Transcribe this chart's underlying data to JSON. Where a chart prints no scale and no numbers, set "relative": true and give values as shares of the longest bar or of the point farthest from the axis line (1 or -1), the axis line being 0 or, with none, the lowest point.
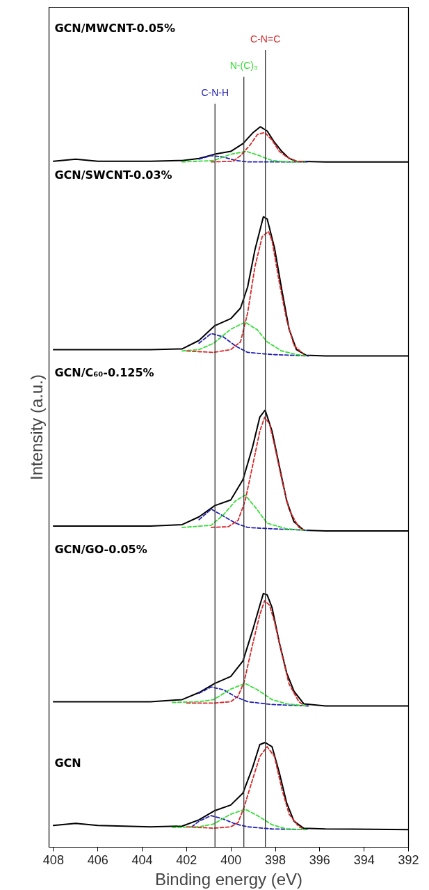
{
  "chart_data": {
    "type": "line",
    "relative": true,
    "xlabel": "Binding energy (eV)",
    "ylabel": "Intensity (a.u.)",
    "xlim": [
      408.2,
      392
    ],
    "xticks": [
      408,
      406,
      404,
      402,
      400,
      398,
      396,
      394,
      392
    ],
    "line_style": "solid",
    "annotations": [
      "GCN/MWCNT-0.05%",
      "GCN/SWCNT-0.03%",
      "GCN/C₆₀-0.125%",
      "GCN/GO-0.05%",
      "GCN"
    ],
    "ref_lines": [
      {
        "axis": "x",
        "value": 400.72,
        "label": "C-N-H",
        "color": "#333333"
      },
      {
        "axis": "x",
        "value": 399.42,
        "label": "N-(C)₃",
        "color": "#333333"
      },
      {
        "axis": "x",
        "value": 398.45,
        "label": "C-N=C",
        "color": "#333333"
      }
    ],
    "series": [
      {
        "color": "#000000",
        "x": [
          408,
          407,
          406,
          403.63,
          402.2,
          401.44,
          400.73,
          400.01,
          399.46,
          399.03,
          398.7,
          398.46,
          398.15,
          397.82,
          397.49,
          397.16,
          396.72,
          395.74,
          392
        ],
        "values": [
          0.006,
          0.009,
          0.006,
          0.004,
          0.005,
          0.014,
          0.027,
          0.035,
          0.052,
          0.088,
          0.121,
          0.124,
          0.118,
          0.081,
          0.038,
          0.012,
          0.002,
          0.001,
          0.0
        ]
      },
      {
        "color": "#1f1fb4",
        "line_style": "dashed",
        "x": [
          401.77,
          401.44,
          400.89,
          400.34,
          399.79,
          399.25,
          398.15,
          396.52
        ],
        "values": [
          0.004,
          0.012,
          0.02,
          0.015,
          0.008,
          0.004,
          0.001,
          0.0
        ]
      },
      {
        "color": "#33dd33",
        "line_style": "dashed",
        "x": [
          402.64,
          401.44,
          400.78,
          400.01,
          399.36,
          398.81,
          398.15,
          397.49,
          396.62
        ],
        "values": [
          0.003,
          0.004,
          0.008,
          0.022,
          0.029,
          0.02,
          0.007,
          0.001,
          0.0
        ]
      },
      {
        "color": "#d62728",
        "line_style": "dashed",
        "x": [
          401.99,
          400.78,
          400.01,
          399.68,
          399.41,
          399.03,
          398.7,
          398.37,
          398.04,
          397.71,
          397.38,
          396.94,
          396.72
        ],
        "values": [
          0.004,
          0.002,
          0.004,
          0.01,
          0.032,
          0.071,
          0.104,
          0.118,
          0.104,
          0.058,
          0.022,
          0.004,
          0.001
        ]
      },
      {
        "color": "#000000",
        "x": [
          408,
          403.63,
          402.2,
          401.44,
          400.73,
          400.01,
          399.46,
          399.03,
          398.7,
          398.54,
          398.37,
          398.15,
          397.82,
          397.49,
          397.16,
          396.72,
          395.74,
          392
        ],
        "values": [
          0.182,
          0.182,
          0.185,
          0.195,
          0.208,
          0.218,
          0.24,
          0.283,
          0.319,
          0.336,
          0.334,
          0.316,
          0.266,
          0.223,
          0.197,
          0.179,
          0.176,
          0.176
        ]
      },
      {
        "color": "#1f1fb4",
        "line_style": "dashed",
        "x": [
          401.44,
          400.89,
          400.34,
          399.79,
          399.25,
          398.15,
          396.52
        ],
        "values": [
          0.194,
          0.203,
          0.199,
          0.189,
          0.182,
          0.178,
          0.176
        ]
      },
      {
        "color": "#33dd33",
        "line_style": "dashed",
        "x": [
          402.64,
          401.44,
          400.78,
          400.01,
          399.36,
          398.81,
          398.15,
          397.49,
          396.62
        ],
        "values": [
          0.181,
          0.182,
          0.185,
          0.2,
          0.208,
          0.199,
          0.185,
          0.179,
          0.176
        ]
      },
      {
        "color": "#d62728",
        "line_style": "dashed",
        "x": [
          401.99,
          400.78,
          400.01,
          399.68,
          399.41,
          399.03,
          398.7,
          398.48,
          398.26,
          398.04,
          397.71,
          397.38,
          396.94,
          396.72
        ],
        "values": [
          0.18,
          0.18,
          0.182,
          0.19,
          0.21,
          0.263,
          0.306,
          0.326,
          0.319,
          0.296,
          0.25,
          0.207,
          0.182,
          0.177
        ]
      },
      {
        "color": "#000000",
        "x": [
          408,
          403.63,
          402.2,
          401.44,
          400.73,
          400.01,
          399.46,
          399.03,
          398.7,
          398.46,
          398.15,
          397.82,
          397.49,
          397.16,
          396.72,
          395.74,
          392
        ],
        "values": [
          0.432,
          0.432,
          0.434,
          0.445,
          0.461,
          0.469,
          0.498,
          0.544,
          0.587,
          0.597,
          0.567,
          0.517,
          0.468,
          0.438,
          0.426,
          0.425,
          0.425
        ]
      },
      {
        "color": "#1f1fb4",
        "line_style": "dashed",
        "x": [
          401.44,
          400.89,
          400.34,
          399.79,
          399.25,
          398.15,
          396.52
        ],
        "values": [
          0.441,
          0.456,
          0.446,
          0.436,
          0.43,
          0.428,
          0.426
        ]
      },
      {
        "color": "#33dd33",
        "line_style": "dashed",
        "x": [
          402.2,
          400.89,
          400.34,
          399.79,
          399.36,
          398.81,
          398.37,
          397.49,
          396.62
        ],
        "values": [
          0.43,
          0.433,
          0.448,
          0.468,
          0.476,
          0.455,
          0.436,
          0.428,
          0.426
        ]
      },
      {
        "color": "#d62728",
        "line_style": "dashed",
        "x": [
          400.89,
          400.12,
          399.68,
          399.36,
          399.03,
          398.7,
          398.48,
          398.26,
          398.04,
          397.71,
          397.38,
          396.94,
          396.72
        ],
        "values": [
          0.43,
          0.431,
          0.44,
          0.468,
          0.517,
          0.567,
          0.587,
          0.577,
          0.547,
          0.498,
          0.455,
          0.43,
          0.427
        ]
      },
      {
        "color": "#000000",
        "x": [
          408,
          403.63,
          402.2,
          401.44,
          400.73,
          400.01,
          399.57,
          399.25,
          398.92,
          398.54,
          398.37,
          398.04,
          397.71,
          397.38,
          397.05,
          396.62,
          395.74,
          392
        ],
        "values": [
          0.683,
          0.683,
          0.684,
          0.696,
          0.717,
          0.727,
          0.742,
          0.772,
          0.825,
          0.872,
          0.869,
          0.828,
          0.768,
          0.712,
          0.683,
          0.675,
          0.674,
          0.674
        ]
      },
      {
        "color": "#1f1fb4",
        "line_style": "dashed",
        "x": [
          401.44,
          400.89,
          400.34,
          399.79,
          399.25,
          398.15,
          396.52
        ],
        "values": [
          0.692,
          0.706,
          0.701,
          0.688,
          0.679,
          0.676,
          0.674
        ]
      },
      {
        "color": "#33dd33",
        "line_style": "dashed",
        "x": [
          402.2,
          401.44,
          400.78,
          400.01,
          399.36,
          398.81,
          398.37,
          397.71,
          397.05,
          396.62
        ],
        "values": [
          0.681,
          0.683,
          0.692,
          0.712,
          0.722,
          0.711,
          0.694,
          0.681,
          0.676,
          0.674
        ]
      },
      {
        "color": "#d62728",
        "line_style": "dashed",
        "x": [
          401.99,
          400.78,
          400.01,
          399.57,
          399.25,
          398.92,
          398.59,
          398.31,
          398.15,
          397.82,
          397.49,
          397.16,
          396.72
        ],
        "values": [
          0.681,
          0.679,
          0.683,
          0.694,
          0.735,
          0.801,
          0.844,
          0.851,
          0.838,
          0.778,
          0.725,
          0.689,
          0.676
        ]
      },
      {
        "color": "#000000",
        "x": [
          408,
          407,
          406,
          403.63,
          402.2,
          401.44,
          400.73,
          400.01,
          399.46,
          399.03,
          398.68,
          398.37,
          398.04,
          397.71,
          397.38,
          397.05,
          395.74,
          392
        ],
        "values": [
          0.951,
          0.954,
          0.951,
          0.951,
          0.952,
          0.955,
          0.961,
          0.965,
          0.976,
          0.991,
          1.0,
          0.994,
          0.978,
          0.965,
          0.955,
          0.951,
          0.95,
          0.95
        ]
      },
      {
        "color": "#1f1fb4",
        "line_style": "dashed",
        "x": [
          401.44,
          400.89,
          400.34,
          399.79,
          399.25,
          396.52
        ],
        "values": [
          0.954,
          0.959,
          0.957,
          0.952,
          0.95,
          0.95
        ]
      },
      {
        "color": "#33dd33",
        "line_style": "dashed",
        "x": [
          402.2,
          400.78,
          400.01,
          399.3,
          398.81,
          398.15,
          397.49,
          396.62
        ],
        "values": [
          0.95,
          0.952,
          0.961,
          0.965,
          0.96,
          0.952,
          0.95,
          0.95
        ]
      },
      {
        "color": "#d62728",
        "line_style": "dashed",
        "x": [
          400.89,
          399.9,
          399.57,
          399.14,
          398.81,
          398.48,
          398.15,
          397.82,
          397.49,
          397.05,
          396.72
        ],
        "values": [
          0.95,
          0.951,
          0.959,
          0.974,
          0.989,
          0.992,
          0.981,
          0.965,
          0.957,
          0.951,
          0.95
        ]
      }
    ]
  }
}
